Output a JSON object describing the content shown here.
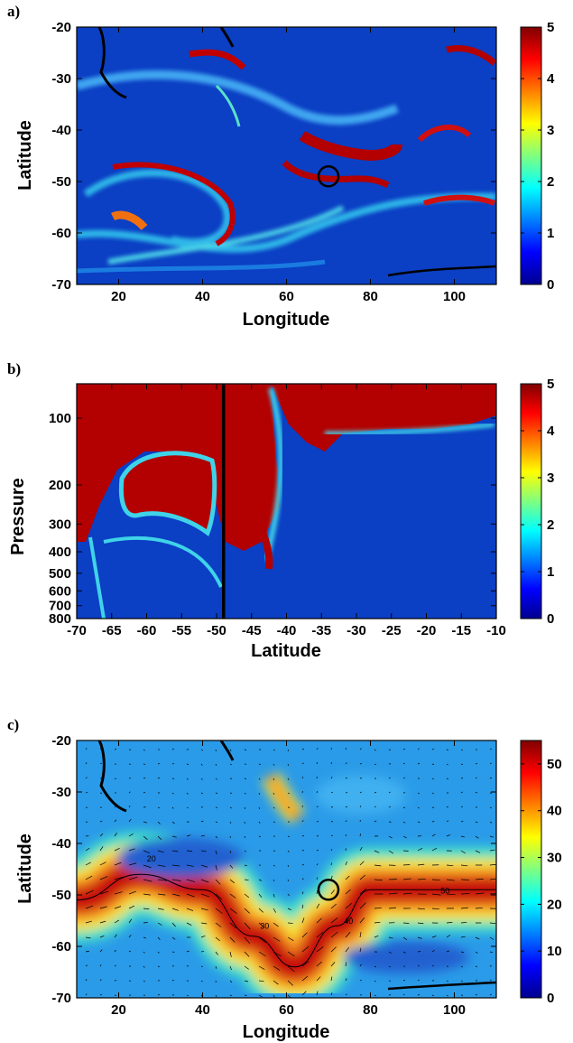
{
  "chart_data": [
    {
      "type": "heatmap",
      "panel": "a)",
      "xlabel": "Longitude",
      "ylabel": "Latitude",
      "xlim": [
        10,
        110
      ],
      "ylim": [
        -70,
        -20
      ],
      "x_ticks": [
        20,
        40,
        60,
        80,
        100
      ],
      "y_ticks": [
        -20,
        -30,
        -40,
        -50,
        -60,
        -70
      ],
      "colorbar": {
        "min": 0,
        "max": 5,
        "ticks": [
          0,
          1,
          2,
          3,
          4,
          5
        ]
      },
      "marker": {
        "shape": "circle",
        "x": 70,
        "y": -49
      },
      "colors": {
        "background": "#0b3fc4",
        "high": "#b30000",
        "mid": "#3fd3e8",
        "coast": "#000000"
      }
    },
    {
      "type": "heatmap",
      "panel": "b)",
      "xlabel": "Latitude",
      "ylabel": "Pressure",
      "xlim": [
        -70,
        -10
      ],
      "ylim": [
        800,
        70
      ],
      "y_scale": "log",
      "x_ticks": [
        -70,
        -65,
        -60,
        -55,
        -50,
        -45,
        -40,
        -35,
        -30,
        -25,
        -20,
        -15,
        -10
      ],
      "y_ticks": [
        100,
        200,
        300,
        400,
        500,
        600,
        700,
        800
      ],
      "colorbar": {
        "min": 0,
        "max": 5,
        "ticks": [
          0,
          1,
          2,
          3,
          4,
          5
        ]
      },
      "vertical_line": {
        "x": -49
      },
      "colors": {
        "background": "#0b3fc4",
        "high": "#b30000",
        "mid": "#3fd3e8"
      }
    },
    {
      "type": "heatmap",
      "panel": "c)",
      "xlabel": "Longitude",
      "ylabel": "Latitude",
      "xlim": [
        10,
        110
      ],
      "ylim": [
        -70,
        -20
      ],
      "x_ticks": [
        20,
        40,
        60,
        80,
        100
      ],
      "y_ticks": [
        -20,
        -30,
        -40,
        -50,
        -60,
        -70
      ],
      "colorbar": {
        "min": 0,
        "max": 55,
        "ticks": [
          0,
          10,
          20,
          30,
          40,
          50
        ]
      },
      "contour_labels": [
        "20",
        "30",
        "40",
        "50"
      ],
      "marker": {
        "shape": "circle",
        "x": 70,
        "y": -49
      },
      "jet_axis_points": [
        [
          10,
          -51
        ],
        [
          25,
          -46
        ],
        [
          40,
          -49
        ],
        [
          52,
          -58
        ],
        [
          62,
          -64
        ],
        [
          72,
          -56
        ],
        [
          80,
          -49
        ],
        [
          95,
          -49
        ],
        [
          110,
          -49
        ]
      ],
      "colors": {
        "background": "#2a9be8",
        "high": "#c81010",
        "mid": "#f5e63c",
        "vectors": "#000000"
      }
    }
  ]
}
